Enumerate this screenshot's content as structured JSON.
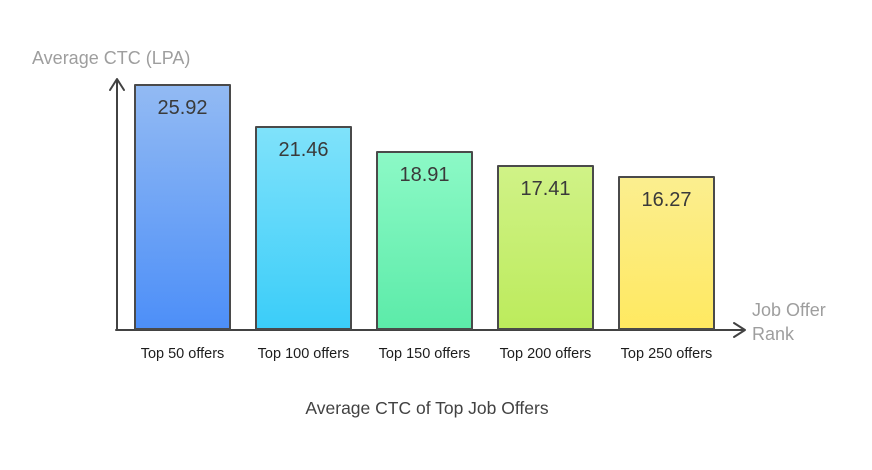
{
  "page": {
    "background_color": "#ffffff"
  },
  "chart_data": {
    "type": "bar",
    "title": "Average CTC of Top Job Offers",
    "ylabel": "Average CTC (LPA)",
    "xlabel": "Job Offer Rank",
    "xlabel_lines": [
      "Job Offer",
      "Rank"
    ],
    "categories": [
      "Top 50 offers",
      "Top 100 offers",
      "Top 150 offers",
      "Top 200 offers",
      "Top 250 offers"
    ],
    "values": [
      25.92,
      21.46,
      18.91,
      17.41,
      16.27
    ],
    "value_labels": [
      "25.92",
      "21.46",
      "18.91",
      "17.41",
      "16.27"
    ],
    "ylim": [
      0,
      26
    ],
    "grid": false,
    "legend": "none",
    "bar_gradients": [
      {
        "top": "#92BAF3",
        "bottom": "#4D8FF8"
      },
      {
        "top": "#7FE2FA",
        "bottom": "#3BCDF9"
      },
      {
        "top": "#8CF9C6",
        "bottom": "#5CEBA9"
      },
      {
        "top": "#D0F287",
        "bottom": "#BCEB5C"
      },
      {
        "top": "#FBEE8F",
        "bottom": "#FFE961"
      }
    ],
    "bar_border_color": "#4A4A4A",
    "axis_color": "#424242",
    "axis_title_color": "#9E9E9E",
    "value_label_color": "#3A3A3A",
    "tick_label_color": "#1D1D1D",
    "title_color": "#424242"
  }
}
